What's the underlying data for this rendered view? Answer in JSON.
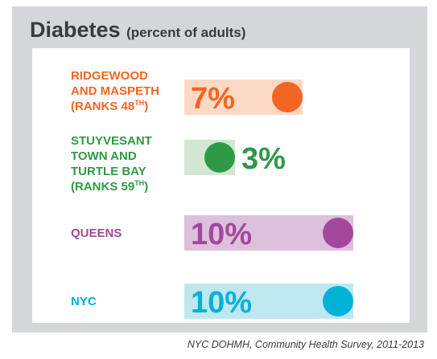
{
  "chart_data": {
    "type": "bar",
    "title": "Diabetes",
    "subtitle": "(percent of adults)",
    "unit": "%",
    "xlim": [
      0,
      10
    ],
    "series": [
      {
        "label_lines": [
          "RIDGEWOOD",
          "AND MASPETH",
          "(RANKS 48TH)"
        ],
        "value": 7,
        "value_label": "7%",
        "color": "#f26522",
        "track_color": "#fcd9c5"
      },
      {
        "label_lines": [
          "STUYVESANT",
          "TOWN AND",
          "TURTLE BAY",
          "(RANKS 59TH)"
        ],
        "value": 3,
        "value_label": "3%",
        "color": "#2e9a47",
        "track_color": "#d3e6d2"
      },
      {
        "label_lines": [
          "QUEENS"
        ],
        "value": 10,
        "value_label": "10%",
        "color": "#a3489c",
        "track_color": "#dcc0dc"
      },
      {
        "label_lines": [
          "NYC"
        ],
        "value": 10,
        "value_label": "10%",
        "color": "#00b2d6",
        "track_color": "#bfe7f0"
      }
    ],
    "source": "NYC DOHMH, Community Health Survey, 2011-2013"
  }
}
